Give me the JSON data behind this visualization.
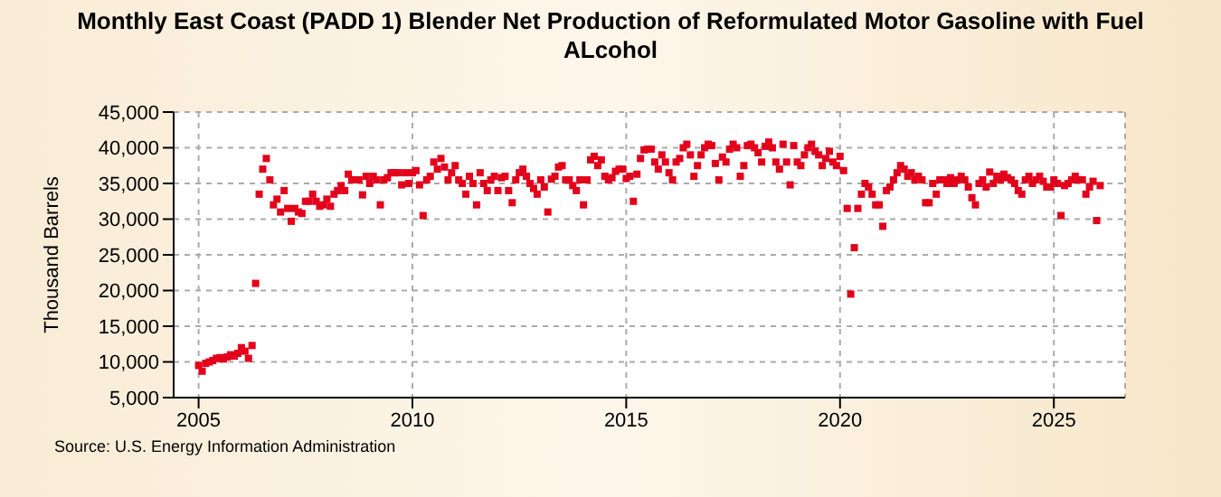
{
  "chart_data": {
    "type": "scatter",
    "title": "Monthly East Coast (PADD 1) Blender Net Production of Reformulated Motor Gasoline with Fuel ALcohol",
    "ylabel": "Thousand Barrels",
    "annotations": [
      "Source: U.S. Energy Information Administration"
    ],
    "marker": "square",
    "grid": true,
    "xlim": [
      "2004-06",
      "2026-09"
    ],
    "xticks": [
      {
        "value": "2005",
        "label": "2005"
      },
      {
        "value": "2010",
        "label": "2010"
      },
      {
        "value": "2015",
        "label": "2015"
      },
      {
        "value": "2020",
        "label": "2020"
      },
      {
        "value": "2025",
        "label": "2025"
      }
    ],
    "ylim": [
      5000,
      45000
    ],
    "yticks": [
      {
        "value": 5000,
        "label": "5,000"
      },
      {
        "value": 10000,
        "label": "10,000"
      },
      {
        "value": 15000,
        "label": "15,000"
      },
      {
        "value": 20000,
        "label": "20,000"
      },
      {
        "value": 25000,
        "label": "25,000"
      },
      {
        "value": 30000,
        "label": "30,000"
      },
      {
        "value": 35000,
        "label": "35,000"
      },
      {
        "value": 40000,
        "label": "40,000"
      },
      {
        "value": 45000,
        "label": "45,000"
      }
    ],
    "x": [
      "2005-01",
      "2005-02",
      "2005-03",
      "2005-04",
      "2005-05",
      "2005-06",
      "2005-07",
      "2005-08",
      "2005-09",
      "2005-10",
      "2005-11",
      "2005-12",
      "2006-01",
      "2006-02",
      "2006-03",
      "2006-04",
      "2006-05",
      "2006-06",
      "2006-07",
      "2006-08",
      "2006-09",
      "2006-10",
      "2006-11",
      "2006-12",
      "2007-01",
      "2007-02",
      "2007-03",
      "2007-04",
      "2007-05",
      "2007-06",
      "2007-07",
      "2007-08",
      "2007-09",
      "2007-10",
      "2007-11",
      "2007-12",
      "2008-01",
      "2008-02",
      "2008-03",
      "2008-04",
      "2008-05",
      "2008-06",
      "2008-07",
      "2008-08",
      "2008-09",
      "2008-10",
      "2008-11",
      "2008-12",
      "2009-01",
      "2009-02",
      "2009-03",
      "2009-04",
      "2009-05",
      "2009-06",
      "2009-07",
      "2009-08",
      "2009-09",
      "2009-10",
      "2009-11",
      "2009-12",
      "2010-01",
      "2010-02",
      "2010-03",
      "2010-04",
      "2010-05",
      "2010-06",
      "2010-07",
      "2010-08",
      "2010-09",
      "2010-10",
      "2010-11",
      "2010-12",
      "2011-01",
      "2011-02",
      "2011-03",
      "2011-04",
      "2011-05",
      "2011-06",
      "2011-07",
      "2011-08",
      "2011-09",
      "2011-10",
      "2011-11",
      "2011-12",
      "2012-01",
      "2012-02",
      "2012-03",
      "2012-04",
      "2012-05",
      "2012-06",
      "2012-07",
      "2012-08",
      "2012-09",
      "2012-10",
      "2012-11",
      "2012-12",
      "2013-01",
      "2013-02",
      "2013-03",
      "2013-04",
      "2013-05",
      "2013-06",
      "2013-07",
      "2013-08",
      "2013-09",
      "2013-10",
      "2013-11",
      "2013-12",
      "2014-01",
      "2014-02",
      "2014-03",
      "2014-04",
      "2014-05",
      "2014-06",
      "2014-07",
      "2014-08",
      "2014-09",
      "2014-10",
      "2014-11",
      "2014-12",
      "2015-01",
      "2015-02",
      "2015-03",
      "2015-04",
      "2015-05",
      "2015-06",
      "2015-07",
      "2015-08",
      "2015-09",
      "2015-10",
      "2015-11",
      "2015-12",
      "2016-01",
      "2016-02",
      "2016-03",
      "2016-04",
      "2016-05",
      "2016-06",
      "2016-07",
      "2016-08",
      "2016-09",
      "2016-10",
      "2016-11",
      "2016-12",
      "2017-01",
      "2017-02",
      "2017-03",
      "2017-04",
      "2017-05",
      "2017-06",
      "2017-07",
      "2017-08",
      "2017-09",
      "2017-10",
      "2017-11",
      "2017-12",
      "2018-01",
      "2018-02",
      "2018-03",
      "2018-04",
      "2018-05",
      "2018-06",
      "2018-07",
      "2018-08",
      "2018-09",
      "2018-10",
      "2018-11",
      "2018-12",
      "2019-01",
      "2019-02",
      "2019-03",
      "2019-04",
      "2019-05",
      "2019-06",
      "2019-07",
      "2019-08",
      "2019-09",
      "2019-10",
      "2019-11",
      "2019-12",
      "2020-01",
      "2020-02",
      "2020-03",
      "2020-04",
      "2020-05",
      "2020-06",
      "2020-07",
      "2020-08",
      "2020-09",
      "2020-10",
      "2020-11",
      "2020-12",
      "2021-01",
      "2021-02",
      "2021-03",
      "2021-04",
      "2021-05",
      "2021-06",
      "2021-07",
      "2021-08",
      "2021-09",
      "2021-10",
      "2021-11",
      "2021-12",
      "2022-01",
      "2022-02",
      "2022-03",
      "2022-04",
      "2022-05",
      "2022-06",
      "2022-07",
      "2022-08",
      "2022-09",
      "2022-10",
      "2022-11",
      "2022-12",
      "2023-01",
      "2023-02",
      "2023-03",
      "2023-04",
      "2023-05",
      "2023-06",
      "2023-07",
      "2023-08",
      "2023-09",
      "2023-10",
      "2023-11",
      "2023-12",
      "2024-01",
      "2024-02",
      "2024-03",
      "2024-04",
      "2024-05",
      "2024-06",
      "2024-07",
      "2024-08",
      "2024-09",
      "2024-10",
      "2024-11",
      "2024-12",
      "2025-01",
      "2025-02",
      "2025-03",
      "2025-04",
      "2025-05",
      "2025-06",
      "2025-07",
      "2025-08",
      "2025-09",
      "2025-10",
      "2025-11",
      "2025-12",
      "2026-01",
      "2026-02"
    ],
    "series": [
      {
        "color": "#e3001b",
        "values": [
          9500,
          8700,
          9800,
          10000,
          10200,
          10500,
          10600,
          10400,
          10700,
          11000,
          10800,
          11200,
          12000,
          11500,
          10500,
          12300,
          21000,
          33500,
          37000,
          38500,
          35500,
          32000,
          32800,
          31000,
          34000,
          31500,
          29700,
          31500,
          31000,
          30800,
          32500,
          32500,
          33500,
          32500,
          31800,
          32000,
          32800,
          31800,
          33500,
          34000,
          34700,
          34000,
          36300,
          35500,
          35500,
          35500,
          33400,
          36000,
          35000,
          36000,
          35500,
          32000,
          35500,
          35800,
          36500,
          36500,
          36500,
          34800,
          36500,
          35000,
          36500,
          36800,
          34800,
          30500,
          35500,
          36000,
          38000,
          37000,
          38500,
          37300,
          35500,
          36500,
          37500,
          35500,
          35000,
          33500,
          36000,
          35000,
          32000,
          36500,
          35000,
          34000,
          35500,
          36000,
          34000,
          35800,
          36000,
          34000,
          32300,
          35500,
          36500,
          37000,
          36000,
          35000,
          34300,
          33500,
          35500,
          34500,
          31000,
          35600,
          36000,
          37300,
          37500,
          35500,
          35500,
          34700,
          34000,
          35500,
          32000,
          35500,
          38300,
          38800,
          37500,
          38300,
          36000,
          35500,
          35800,
          36700,
          37000,
          37000,
          35700,
          36000,
          32500,
          36300,
          38500,
          39700,
          39800,
          39800,
          38000,
          37000,
          39000,
          38000,
          36500,
          35500,
          38000,
          38500,
          40000,
          40500,
          39000,
          36000,
          37500,
          39000,
          40000,
          40500,
          40300,
          37800,
          35500,
          38700,
          38000,
          39800,
          40500,
          40000,
          36000,
          37500,
          40300,
          40500,
          40000,
          39300,
          38000,
          40200,
          40800,
          40000,
          38000,
          37000,
          40500,
          38000,
          34800,
          40300,
          38000,
          37500,
          39000,
          40000,
          40500,
          39500,
          39000,
          37500,
          38500,
          39500,
          38000,
          37500,
          38800,
          36800,
          31500,
          19500,
          26000,
          31500,
          33500,
          35000,
          34500,
          33500,
          32000,
          32000,
          29000,
          34000,
          34500,
          35500,
          36500,
          37500,
          37000,
          36000,
          36500,
          35500,
          36000,
          35500,
          32300,
          32300,
          35000,
          33500,
          35500,
          35500,
          35000,
          35800,
          35000,
          35500,
          36000,
          35500,
          34500,
          33000,
          32000,
          35000,
          35500,
          34500,
          36600,
          35000,
          36000,
          35500,
          36300,
          35800,
          35500,
          35000,
          34000,
          33500,
          35500,
          36000,
          35000,
          35500,
          36000,
          35300,
          34500,
          34500,
          35500,
          35000,
          30500,
          34700,
          35000,
          35500,
          36000,
          35500,
          35500,
          33500,
          34500,
          35300,
          29800,
          34700
        ]
      }
    ]
  }
}
